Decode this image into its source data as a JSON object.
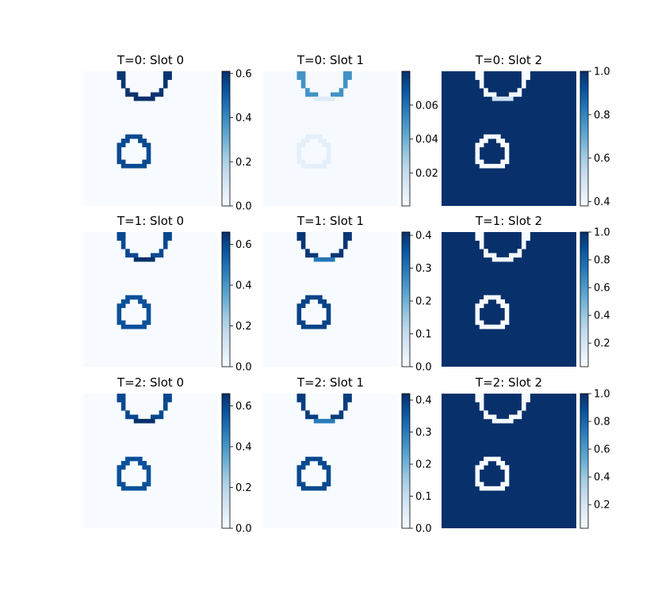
{
  "colors": {
    "cmap": "Blues",
    "background_low": "#f7fbff",
    "background_high": "#08306b",
    "ring_light": "#ffffff"
  },
  "chart_data": [
    {
      "type": "heatmap",
      "title": "T=0: Slot 0",
      "cmap": "Blues",
      "vmin": 0.0,
      "vmax": 0.61,
      "background": 0.0,
      "ring_a": 0.55,
      "ring_b": 0.6,
      "ring_b_bottom": 0.61,
      "colorbar_ticks": [
        "0.0",
        "0.2",
        "0.4",
        "0.6"
      ],
      "colorbar_tick_values": [
        0.0,
        0.2,
        0.4,
        0.6
      ]
    },
    {
      "type": "heatmap",
      "title": "T=0: Slot 1",
      "cmap": "Blues",
      "vmin": 0.0005,
      "vmax": 0.08,
      "background": 0.001,
      "ring_a": 0.008,
      "ring_b": 0.05,
      "ring_b_bottom": 0.01,
      "colorbar_ticks": [
        "0.02",
        "0.04",
        "0.06"
      ],
      "colorbar_tick_values": [
        0.02,
        0.04,
        0.06
      ]
    },
    {
      "type": "heatmap",
      "title": "T=0: Slot 2",
      "cmap": "Blues",
      "vmin": 0.38,
      "vmax": 1.0,
      "background": 1.0,
      "ring_a": 0.38,
      "ring_b": 0.38,
      "ring_b_bottom": 0.5,
      "colorbar_ticks": [
        "0.4",
        "0.6",
        "0.8",
        "1.0"
      ],
      "colorbar_tick_values": [
        0.4,
        0.6,
        0.8,
        1.0
      ]
    },
    {
      "type": "heatmap",
      "title": "T=1: Slot 0",
      "cmap": "Blues",
      "vmin": 0.0,
      "vmax": 0.66,
      "background": 0.0,
      "ring_a": 0.58,
      "ring_b": 0.6,
      "ring_b_bottom": 0.66,
      "colorbar_ticks": [
        "0.0",
        "0.2",
        "0.4",
        "0.6"
      ],
      "colorbar_tick_values": [
        0.0,
        0.2,
        0.4,
        0.6
      ]
    },
    {
      "type": "heatmap",
      "title": "T=1: Slot 1",
      "cmap": "Blues",
      "vmin": 0.0,
      "vmax": 0.41,
      "background": 0.0,
      "ring_a": 0.38,
      "ring_b": 0.4,
      "ring_b_bottom": 0.3,
      "colorbar_ticks": [
        "0.0",
        "0.1",
        "0.2",
        "0.3",
        "0.4"
      ],
      "colorbar_tick_values": [
        0.0,
        0.1,
        0.2,
        0.3,
        0.4
      ]
    },
    {
      "type": "heatmap",
      "title": "T=1: Slot 2",
      "cmap": "Blues",
      "vmin": 0.03,
      "vmax": 1.0,
      "background": 1.0,
      "ring_a": 0.03,
      "ring_b": 0.03,
      "ring_b_bottom": 0.05,
      "colorbar_ticks": [
        "0.2",
        "0.4",
        "0.6",
        "0.8",
        "1.0"
      ],
      "colorbar_tick_values": [
        0.2,
        0.4,
        0.6,
        0.8,
        1.0
      ]
    },
    {
      "type": "heatmap",
      "title": "T=2: Slot 0",
      "cmap": "Blues",
      "vmin": 0.0,
      "vmax": 0.66,
      "background": 0.0,
      "ring_a": 0.58,
      "ring_b": 0.6,
      "ring_b_bottom": 0.66,
      "colorbar_ticks": [
        "0.0",
        "0.2",
        "0.4",
        "0.6"
      ],
      "colorbar_tick_values": [
        0.0,
        0.2,
        0.4,
        0.6
      ]
    },
    {
      "type": "heatmap",
      "title": "T=2: Slot 1",
      "cmap": "Blues",
      "vmin": 0.0,
      "vmax": 0.42,
      "background": 0.0,
      "ring_a": 0.38,
      "ring_b": 0.4,
      "ring_b_bottom": 0.3,
      "colorbar_ticks": [
        "0.0",
        "0.1",
        "0.2",
        "0.3",
        "0.4"
      ],
      "colorbar_tick_values": [
        0.0,
        0.1,
        0.2,
        0.3,
        0.4
      ]
    },
    {
      "type": "heatmap",
      "title": "T=2: Slot 2",
      "cmap": "Blues",
      "vmin": 0.03,
      "vmax": 1.0,
      "background": 1.0,
      "ring_a": 0.03,
      "ring_b": 0.03,
      "ring_b_bottom": 0.05,
      "colorbar_ticks": [
        "0.2",
        "0.4",
        "0.6",
        "0.8",
        "1.0"
      ],
      "colorbar_tick_values": [
        0.2,
        0.4,
        0.6,
        0.8,
        1.0
      ]
    }
  ]
}
